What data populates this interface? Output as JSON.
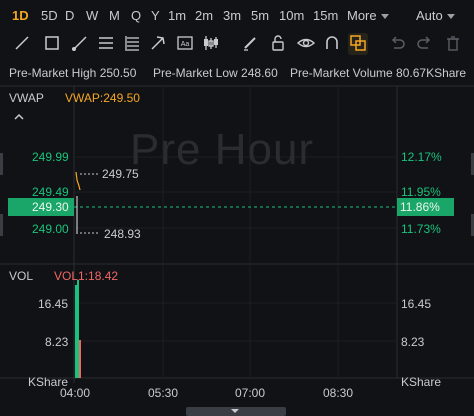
{
  "timeframes": [
    "1D",
    "5D",
    "D",
    "W",
    "M",
    "Q",
    "Y",
    "1m",
    "2m",
    "3m",
    "5m",
    "10m",
    "15m"
  ],
  "more_label": "More",
  "auto_label": "Auto",
  "colors": {
    "accent": "#f5a623",
    "green": "#19c37d",
    "tag_bg": "#1aa669",
    "red": "#f06767"
  },
  "tools": [
    "line-icon",
    "rectangle-icon",
    "ray-icon",
    "parallel-channel-icon",
    "fibonacci-icon",
    "arrow-icon",
    "text-icon",
    "pattern-icon",
    "brush-icon",
    "lock-icon",
    "eye-icon",
    "magnet-icon",
    "layers-icon",
    "undo-icon",
    "redo-icon",
    "trash-icon"
  ],
  "info": {
    "high_label": "Pre-Market High",
    "high_value": "250.50",
    "low_label": "Pre-Market Low",
    "low_value": "248.60",
    "vol_label": "Pre-Market Volume",
    "vol_value": "80.67KShare"
  },
  "main_panel": {
    "indicator": "VWAP",
    "indicator_value": "VWAP:249.50",
    "watermark": "Pre Hour",
    "left_ticks": [
      "249.99",
      "249.49",
      "249.00"
    ],
    "right_ticks": [
      "12.17%",
      "11.95%",
      "11.73%"
    ],
    "price_tag": "249.30",
    "pct_tag": "11.86%",
    "hi_marker": "249.75",
    "lo_marker": "248.93"
  },
  "vol_panel": {
    "label": "VOL",
    "value": "VOL1:18.42",
    "left_ticks": [
      "16.45",
      "8.23",
      "KShare"
    ],
    "right_ticks": [
      "16.45",
      "8.23",
      "KShare"
    ]
  },
  "time_axis": [
    "04:00",
    "05:30",
    "07:00",
    "08:30"
  ]
}
